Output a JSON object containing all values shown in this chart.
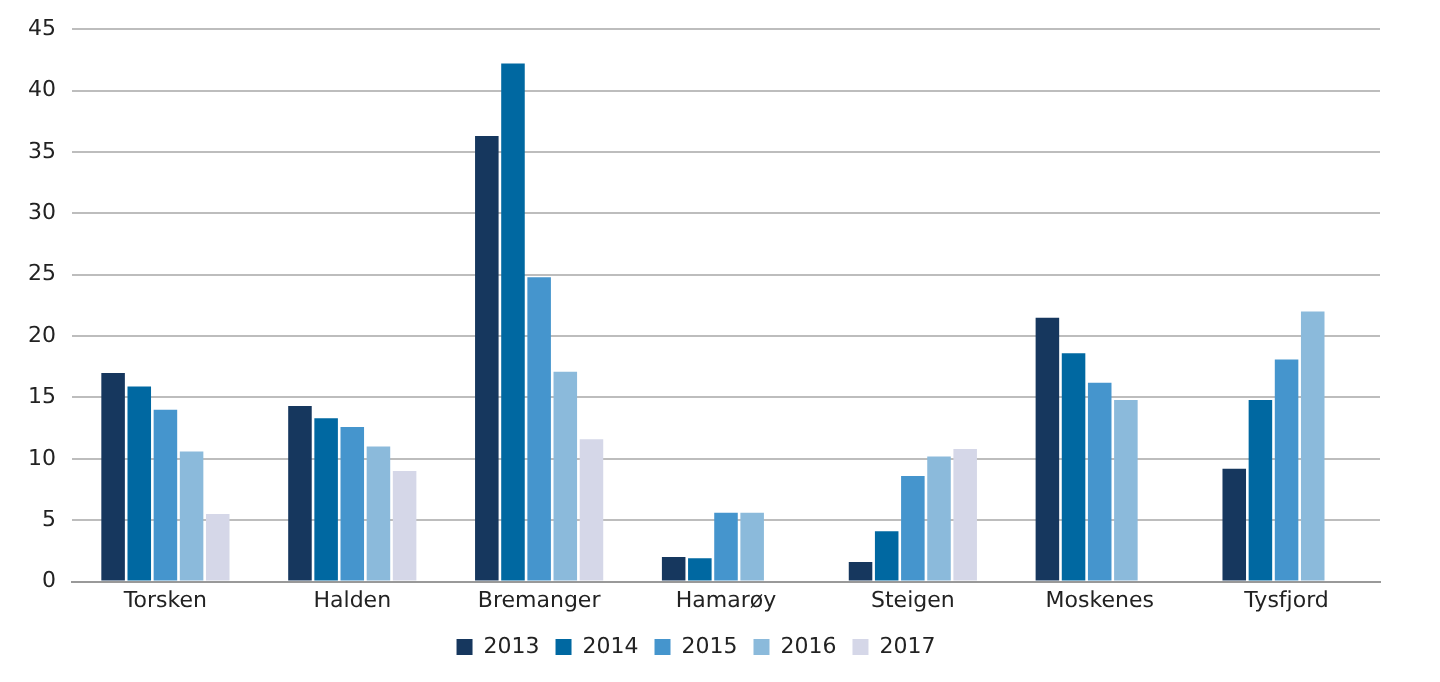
{
  "chart_data": {
    "type": "bar",
    "categories": [
      "Torsken",
      "Halden",
      "Bremanger",
      "Hamarøy",
      "Steigen",
      "Moskenes",
      "Tysfjord"
    ],
    "series": [
      {
        "name": "2013",
        "color": "#16375e",
        "values": [
          17.0,
          14.3,
          36.3,
          2.0,
          1.6,
          21.5,
          9.2
        ]
      },
      {
        "name": "2014",
        "color": "#0068a1",
        "values": [
          15.9,
          13.3,
          42.2,
          1.9,
          4.1,
          18.6,
          14.8
        ]
      },
      {
        "name": "2015",
        "color": "#4595cd",
        "values": [
          14.0,
          12.6,
          24.8,
          5.6,
          8.6,
          16.2,
          18.1
        ]
      },
      {
        "name": "2016",
        "color": "#8bbadb",
        "values": [
          10.6,
          11.0,
          17.1,
          5.6,
          10.2,
          14.8,
          22.0
        ]
      },
      {
        "name": "2017",
        "color": "#d5d7e8",
        "values": [
          5.5,
          9.0,
          11.6,
          null,
          10.8,
          null,
          null
        ]
      }
    ],
    "ylim": [
      0,
      45
    ],
    "yticks": [
      0,
      5,
      10,
      15,
      20,
      25,
      30,
      35,
      40,
      45
    ],
    "grid": "y",
    "legend": "bottom"
  }
}
